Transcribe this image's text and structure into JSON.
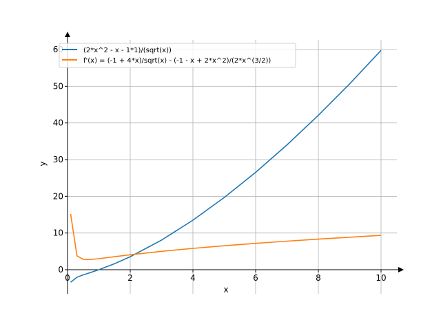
{
  "chart_data": {
    "type": "line",
    "title": "",
    "xlabel": "x",
    "ylabel": "y",
    "xlim": [
      0,
      10.5
    ],
    "ylim": [
      -6.5,
      64
    ],
    "grid": true,
    "legend_position": "top-left",
    "x_ticks": [
      "0",
      "2",
      "4",
      "6",
      "8",
      "10"
    ],
    "x_tick_values": [
      0,
      2,
      4,
      6,
      8,
      10
    ],
    "y_ticks": [
      "0",
      "10",
      "20",
      "30",
      "40",
      "50",
      "60"
    ],
    "y_tick_values": [
      0,
      10,
      20,
      30,
      40,
      50,
      60
    ],
    "x": [
      0.1,
      0.3,
      0.5,
      0.7,
      1,
      1.5,
      2,
      3,
      4,
      5,
      6,
      7,
      8,
      9,
      10
    ],
    "series": [
      {
        "name": "(2*x^2 - x - 1*1)/(sqrt(x))",
        "color": "#1f77b4",
        "values": [
          -3.415,
          -2.045,
          -1.414,
          -0.861,
          0,
          1.633,
          3.536,
          8.083,
          13.5,
          19.68,
          26.54,
          34.02,
          42.07,
          50.67,
          59.77
        ]
      },
      {
        "name": "f'(x) = (-1 + 4*x)/sqrt(x) - (-1 - x + 2*x^2)/(2*x^(3/2))",
        "color": "#ff7f0e",
        "values": [
          15.18,
          3.77,
          2.83,
          2.77,
          3.0,
          3.54,
          4.07,
          5.0,
          5.81,
          6.53,
          7.18,
          7.78,
          8.33,
          8.85,
          9.35
        ]
      }
    ]
  }
}
